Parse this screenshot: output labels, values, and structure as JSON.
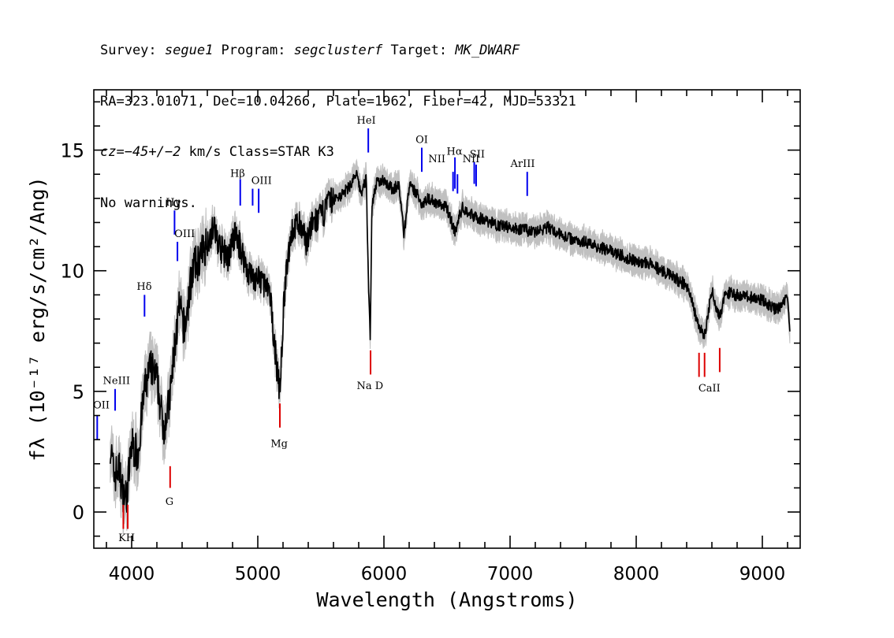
{
  "header": {
    "line1": {
      "survey_label": "Survey: ",
      "survey": "segue1",
      "program_label": " Program: ",
      "program": "segclusterf",
      "target_label": " Target: ",
      "target": "MK_DWARF"
    },
    "line2": "RA=323.01071, Dec=10.04266, Plate=1962, Fiber=42, MJD=53321",
    "line3": {
      "cz": "cz=−45+/−2",
      "rest": " km/s Class=STAR K3"
    },
    "line4": "No warnings."
  },
  "colors": {
    "spectrum": "#000000",
    "error": "#c0c0c0",
    "emission": "#0000ee",
    "absorption": "#dd0000"
  },
  "chart_data": {
    "type": "line",
    "xlabel": "Wavelength (Angstroms)",
    "ylabel": "fλ (10⁻¹⁷ erg/s/cm²/Ang)",
    "xlim": [
      3700,
      9300
    ],
    "ylim": [
      -1.5,
      17.5
    ],
    "x_ticks": [
      4000,
      5000,
      6000,
      7000,
      8000,
      9000
    ],
    "x_tick_labels": [
      "4000",
      "5000",
      "6000",
      "7000",
      "8000",
      "9000"
    ],
    "y_ticks": [
      0,
      5,
      10,
      15
    ],
    "y_tick_labels": [
      "0",
      "5",
      "10",
      "15"
    ],
    "series": [
      {
        "x": [
          3830,
          3860,
          3900,
          3930,
          3960,
          4000,
          4050,
          4100,
          4150,
          4200,
          4250,
          4300,
          4340,
          4380,
          4420,
          4480,
          4540,
          4600,
          4650,
          4700,
          4760,
          4820,
          4860,
          4920,
          4980,
          5040,
          5100,
          5150,
          5175,
          5210,
          5260,
          5320,
          5380,
          5440,
          5500,
          5560,
          5620,
          5680,
          5740,
          5780,
          5820,
          5860,
          5880,
          5892,
          5905,
          5940,
          6000,
          6060,
          6120,
          6160,
          6200,
          6260,
          6300,
          6360,
          6420,
          6500,
          6563,
          6620,
          6700,
          6800,
          6900,
          7000,
          7100,
          7200,
          7300,
          7400,
          7500,
          7600,
          7700,
          7800,
          7900,
          8000,
          8100,
          8200,
          8300,
          8400,
          8498,
          8542,
          8600,
          8662,
          8700,
          8800,
          8900,
          9000,
          9100,
          9150,
          9200,
          9220
        ],
        "y": [
          2.8,
          1.5,
          1.8,
          0.8,
          0.6,
          2.8,
          2.4,
          5.0,
          6.0,
          5.5,
          3.5,
          4.5,
          6.8,
          8.5,
          7.5,
          10.0,
          10.5,
          11.2,
          11.8,
          11.0,
          10.5,
          11.5,
          11.0,
          10.0,
          9.6,
          9.6,
          8.8,
          6.0,
          5.0,
          9.0,
          11.5,
          12.0,
          11.2,
          12.0,
          12.2,
          12.8,
          13.0,
          13.2,
          13.6,
          14.0,
          13.2,
          13.8,
          9.0,
          7.2,
          12.8,
          13.6,
          13.8,
          13.4,
          13.5,
          11.5,
          13.5,
          13.2,
          12.8,
          13.0,
          12.8,
          12.6,
          11.6,
          12.6,
          12.3,
          12.1,
          11.9,
          11.8,
          11.7,
          11.6,
          11.8,
          11.5,
          11.3,
          11.2,
          11.0,
          10.8,
          10.6,
          10.4,
          10.3,
          10.0,
          9.7,
          9.4,
          7.7,
          7.3,
          9.2,
          8.0,
          9.1,
          9.0,
          8.9,
          8.8,
          8.4,
          8.5,
          9.0,
          7.5
        ]
      }
    ],
    "line_markers": [
      {
        "label": "OII",
        "wavelength": 3727,
        "type": "emission",
        "y0": 3.0,
        "y1": 4.0
      },
      {
        "label": "NeIII",
        "wavelength": 3869,
        "type": "emission",
        "y0": 4.2,
        "y1": 5.1
      },
      {
        "label": "Hδ",
        "wavelength": 4102,
        "type": "emission",
        "y0": 8.1,
        "y1": 9.0
      },
      {
        "label": "Hγ",
        "wavelength": 4340,
        "type": "emission",
        "y0": 11.5,
        "y1": 12.5
      },
      {
        "label": "OIII",
        "wavelength": 4363,
        "type": "emission",
        "y0": 10.4,
        "y1": 11.2
      },
      {
        "label": "Hβ",
        "wavelength": 4861,
        "type": "emission",
        "y0": 12.7,
        "y1": 13.8
      },
      {
        "label": "OIII",
        "wavelength": 4959,
        "type": "emission",
        "y0": 12.7,
        "y1": 13.4
      },
      {
        "label": "OIII",
        "wavelength": 5007,
        "type": "emission",
        "y0": 12.4,
        "y1": 13.4
      },
      {
        "label": "HeI",
        "wavelength": 5876,
        "type": "emission",
        "y0": 14.9,
        "y1": 15.9
      },
      {
        "label": "OI",
        "wavelength": 6300,
        "type": "emission",
        "y0": 14.1,
        "y1": 15.1
      },
      {
        "label": "NII",
        "wavelength": 6548,
        "type": "emission",
        "y0": 13.3,
        "y1": 14.1
      },
      {
        "label": "Hα",
        "wavelength": 6563,
        "type": "emission",
        "y0": 13.4,
        "y1": 14.7
      },
      {
        "label": "NII",
        "wavelength": 6583,
        "type": "emission",
        "y0": 13.2,
        "y1": 14.0
      },
      {
        "label": "SII",
        "wavelength": 6716,
        "type": "emission",
        "y0": 13.6,
        "y1": 14.5
      },
      {
        "label": "SII",
        "wavelength": 6731,
        "type": "emission",
        "y0": 13.5,
        "y1": 14.4
      },
      {
        "label": "ArIII",
        "wavelength": 7136,
        "type": "emission",
        "y0": 13.1,
        "y1": 14.1
      },
      {
        "label": "K",
        "wavelength": 3934,
        "type": "absorption",
        "y0": -0.7,
        "y1": 0.3
      },
      {
        "label": "H",
        "wavelength": 3969,
        "type": "absorption",
        "y0": -0.7,
        "y1": 0.3
      },
      {
        "label": "G",
        "wavelength": 4305,
        "type": "absorption",
        "y0": 1.0,
        "y1": 1.9
      },
      {
        "label": "Mg",
        "wavelength": 5175,
        "type": "absorption",
        "y0": 3.5,
        "y1": 4.5
      },
      {
        "label": "Na D",
        "wavelength": 5894,
        "type": "absorption",
        "y0": 5.7,
        "y1": 6.7
      },
      {
        "label": "CaII",
        "wavelength": 8498,
        "type": "absorption",
        "y0": 5.6,
        "y1": 6.6
      },
      {
        "label": "CaII",
        "wavelength": 8542,
        "type": "absorption",
        "y0": 5.6,
        "y1": 6.6
      },
      {
        "label": "CaII",
        "wavelength": 8662,
        "type": "absorption",
        "y0": 5.8,
        "y1": 6.8
      }
    ],
    "marker_labels": [
      {
        "text": "OII",
        "wavelength": 3760,
        "y": 4.3
      },
      {
        "text": "NeIII",
        "wavelength": 3880,
        "y": 5.3
      },
      {
        "text": "Hδ",
        "wavelength": 4100,
        "y": 9.2
      },
      {
        "text": "Hγ",
        "wavelength": 4330,
        "y": 12.7
      },
      {
        "text": "OIII",
        "wavelength": 4420,
        "y": 11.4
      },
      {
        "text": "Hβ",
        "wavelength": 4840,
        "y": 13.9
      },
      {
        "text": "OIII",
        "wavelength": 5030,
        "y": 13.6
      },
      {
        "text": "HeI",
        "wavelength": 5860,
        "y": 16.1
      },
      {
        "text": "OI",
        "wavelength": 6300,
        "y": 15.3
      },
      {
        "text": "NII",
        "wavelength": 6420,
        "y": 14.5
      },
      {
        "text": "Hα",
        "wavelength": 6560,
        "y": 14.8
      },
      {
        "text": "SII",
        "wavelength": 6740,
        "y": 14.7
      },
      {
        "text": "NII",
        "wavelength": 6690,
        "y": 14.5
      },
      {
        "text": "ArIII",
        "wavelength": 7100,
        "y": 14.3
      },
      {
        "text": "KH",
        "wavelength": 3960,
        "y": -1.2
      },
      {
        "text": "G",
        "wavelength": 4300,
        "y": 0.3
      },
      {
        "text": "Mg",
        "wavelength": 5170,
        "y": 2.7
      },
      {
        "text": "Na D",
        "wavelength": 5890,
        "y": 5.1
      },
      {
        "text": "CaII",
        "wavelength": 8580,
        "y": 5.0
      }
    ]
  }
}
